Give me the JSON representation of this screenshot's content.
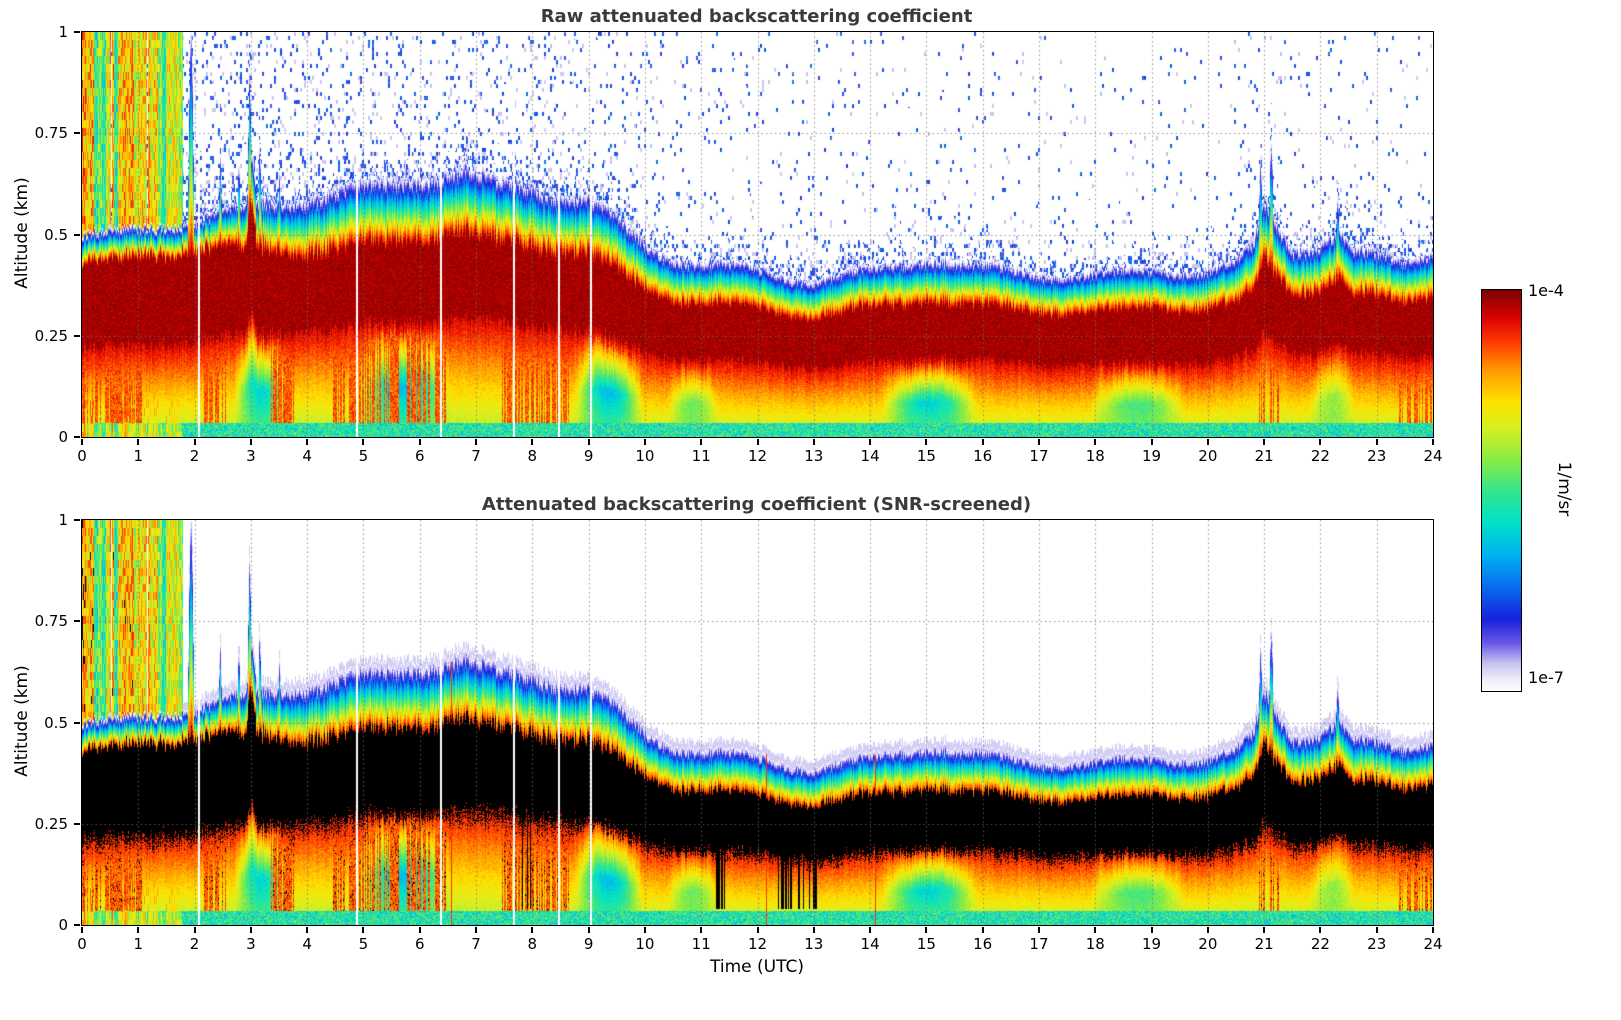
{
  "chart_data": [
    {
      "type": "heatmap",
      "title": "Raw attenuated backscattering coefficient",
      "xlabel": "Time (UTC)",
      "ylabel": "Altitude (km)",
      "x_range": [
        0,
        24
      ],
      "y_range": [
        0,
        1
      ],
      "x_tick_values": [
        0,
        1,
        2,
        3,
        4,
        5,
        6,
        7,
        8,
        9,
        10,
        11,
        12,
        13,
        14,
        15,
        16,
        17,
        18,
        19,
        20,
        21,
        22,
        23,
        24
      ],
      "x_tick_labels": [
        "0",
        "1",
        "2",
        "3",
        "4",
        "5",
        "6",
        "7",
        "8",
        "9",
        "10",
        "11",
        "12",
        "13",
        "14",
        "15",
        "16",
        "17",
        "18",
        "19",
        "20",
        "21",
        "22",
        "23",
        "24"
      ],
      "y_tick_values": [
        0,
        0.25,
        0.5,
        0.75,
        1
      ],
      "y_tick_labels": [
        "0",
        "0.25",
        "0.5",
        "0.75",
        "1"
      ],
      "grid": "dotted",
      "value_scale": "log",
      "colorbar": {
        "min_label": "1e-7",
        "max_label": "1e-4",
        "unit": "1/m/sr"
      },
      "aerosol_layer_top_km": [
        [
          0,
          0.5
        ],
        [
          0.5,
          0.5
        ],
        [
          1,
          0.51
        ],
        [
          1.5,
          0.52
        ],
        [
          2,
          0.53
        ],
        [
          2.5,
          0.55
        ],
        [
          2.9,
          0.56
        ],
        [
          3,
          0.7
        ],
        [
          3.1,
          0.57
        ],
        [
          3.5,
          0.58
        ],
        [
          4,
          0.6
        ],
        [
          4.5,
          0.61
        ],
        [
          5,
          0.63
        ],
        [
          5.5,
          0.64
        ],
        [
          6,
          0.66
        ],
        [
          6.5,
          0.67
        ],
        [
          6.8,
          0.68
        ],
        [
          7,
          0.66
        ],
        [
          7.5,
          0.64
        ],
        [
          8,
          0.63
        ],
        [
          8.5,
          0.61
        ],
        [
          9,
          0.59
        ],
        [
          9.3,
          0.56
        ],
        [
          9.6,
          0.52
        ],
        [
          10,
          0.47
        ],
        [
          10.5,
          0.44
        ],
        [
          11,
          0.43
        ],
        [
          11.5,
          0.42
        ],
        [
          12,
          0.41
        ],
        [
          12.5,
          0.4
        ],
        [
          13,
          0.4
        ],
        [
          13.5,
          0.41
        ],
        [
          14,
          0.42
        ],
        [
          14.5,
          0.44
        ],
        [
          15,
          0.46
        ],
        [
          15.3,
          0.46
        ],
        [
          15.7,
          0.44
        ],
        [
          16,
          0.43
        ],
        [
          16.5,
          0.42
        ],
        [
          17,
          0.41
        ],
        [
          17.5,
          0.41
        ],
        [
          18,
          0.4
        ],
        [
          18.5,
          0.4
        ],
        [
          19,
          0.41
        ],
        [
          19.5,
          0.41
        ],
        [
          20,
          0.41
        ],
        [
          20.5,
          0.43
        ],
        [
          20.8,
          0.47
        ],
        [
          21,
          0.58
        ],
        [
          21.2,
          0.53
        ],
        [
          21.5,
          0.47
        ],
        [
          22,
          0.49
        ],
        [
          22.3,
          0.52
        ],
        [
          22.6,
          0.47
        ],
        [
          23,
          0.46
        ],
        [
          23.5,
          0.45
        ],
        [
          24,
          0.48
        ]
      ],
      "notes": [
        "Strong boundary-layer backscatter core (near 1e-4 1/m/sr, dark red) centred ~0.2-0.5 km, descending from ~6 UTC to ~11 UTC then quasi-steady",
        "Full-depth precipitation/fog columns 0-1.8 UTC reaching 1 km",
        "Blue background-noise speckles above the layer, densest 2-9 UTC",
        "Narrow plume spikes in layer top near 3 UTC and 21 UTC",
        "Low-backscatter (cyan) pockets below the core near 3, 5-6.5, 9-10, 14-16, 18-19.5 UTC"
      ]
    },
    {
      "type": "heatmap",
      "title": "Attenuated backscattering coefficient (SNR-screened)",
      "xlabel": "Time (UTC)",
      "ylabel": "Altitude (km)",
      "x_range": [
        0,
        24
      ],
      "y_range": [
        0,
        1
      ],
      "x_tick_values": [
        0,
        1,
        2,
        3,
        4,
        5,
        6,
        7,
        8,
        9,
        10,
        11,
        12,
        13,
        14,
        15,
        16,
        17,
        18,
        19,
        20,
        21,
        22,
        23,
        24
      ],
      "x_tick_labels": [
        "0",
        "1",
        "2",
        "3",
        "4",
        "5",
        "6",
        "7",
        "8",
        "9",
        "10",
        "11",
        "12",
        "13",
        "14",
        "15",
        "16",
        "17",
        "18",
        "19",
        "20",
        "21",
        "22",
        "23",
        "24"
      ],
      "y_tick_values": [
        0,
        0.25,
        0.5,
        0.75,
        1
      ],
      "y_tick_labels": [
        "0",
        "0.25",
        "0.5",
        "0.75",
        "1"
      ],
      "grid": "dotted",
      "value_scale": "log",
      "colorbar": {
        "min_label": "1e-7",
        "max_label": "1e-4",
        "unit": "1/m/sr"
      },
      "notes": [
        "Same field after SNR screening: noise speckles above the layer removed (white background)",
        "Saturated core of the layer renders as black with ragged edges",
        "Occasional black dropout streaks below the layer near 7.9, 11.3 and 12.4-13 UTC",
        "Thin red artifact columns near 6.5, 12.2 and 14.1 UTC"
      ]
    }
  ],
  "render": {
    "colormap": [
      [
        0.0,
        "#ffffff"
      ],
      [
        0.03,
        "#efeefb"
      ],
      [
        0.07,
        "#c8c3f1"
      ],
      [
        0.12,
        "#6a5ae8"
      ],
      [
        0.18,
        "#1822dc"
      ],
      [
        0.26,
        "#0a6cf0"
      ],
      [
        0.34,
        "#00b2f2"
      ],
      [
        0.42,
        "#00e2c8"
      ],
      [
        0.5,
        "#34e68e"
      ],
      [
        0.58,
        "#8cec42"
      ],
      [
        0.66,
        "#d8f022"
      ],
      [
        0.72,
        "#ffe400"
      ],
      [
        0.8,
        "#ff9c00"
      ],
      [
        0.87,
        "#ff3c00"
      ],
      [
        0.93,
        "#dc0400"
      ],
      [
        1.0,
        "#7c0000"
      ]
    ],
    "core_bottom_ratio": 0.44,
    "spikes": [
      [
        1.93,
        1.03,
        0.05
      ],
      [
        2.45,
        0.7,
        0.035
      ],
      [
        2.78,
        0.7,
        0.03
      ],
      [
        2.97,
        0.92,
        0.035
      ],
      [
        3.15,
        0.74,
        0.03
      ],
      [
        3.5,
        0.66,
        0.04
      ],
      [
        20.93,
        0.7,
        0.04
      ],
      [
        21.12,
        0.74,
        0.05
      ],
      [
        22.3,
        0.6,
        0.05
      ]
    ],
    "rain_until": 1.78,
    "gaps": [
      2.07,
      4.88,
      6.37,
      7.66,
      8.47,
      9.04
    ],
    "pockets": [
      [
        2.7,
        3.65,
        0.9
      ],
      [
        4.9,
        6.55,
        1.0
      ],
      [
        8.75,
        9.95,
        1.0
      ],
      [
        10.4,
        11.3,
        0.5
      ],
      [
        14.2,
        15.9,
        0.9
      ],
      [
        17.9,
        19.6,
        0.6
      ],
      [
        21.8,
        22.6,
        0.4
      ]
    ],
    "orange_windows": [
      [
        0,
        1.05
      ],
      [
        2.15,
        2.55
      ],
      [
        3.35,
        3.75
      ],
      [
        4.4,
        6.45
      ],
      [
        7.45,
        8.65
      ],
      [
        20.85,
        21.25
      ],
      [
        23.35,
        24
      ]
    ],
    "speckle_density": [
      [
        0,
        0.5
      ],
      [
        1.8,
        0.5
      ],
      [
        2.2,
        0.42
      ],
      [
        5,
        0.34
      ],
      [
        8,
        0.3
      ],
      [
        9.5,
        0.22
      ],
      [
        10.5,
        0.13
      ],
      [
        12,
        0.1
      ],
      [
        14,
        0.08
      ],
      [
        16,
        0.07
      ],
      [
        20,
        0.06
      ],
      [
        20.8,
        0.12
      ],
      [
        21.5,
        0.09
      ],
      [
        23,
        0.07
      ],
      [
        24,
        0.07
      ]
    ],
    "black_streak_windows": [
      [
        7.8,
        7.98
      ],
      [
        11.25,
        11.42
      ],
      [
        12.35,
        13.05
      ]
    ],
    "red_line_times": [
      6.55,
      12.15,
      14.08
    ],
    "black_threshold": 0.905
  }
}
